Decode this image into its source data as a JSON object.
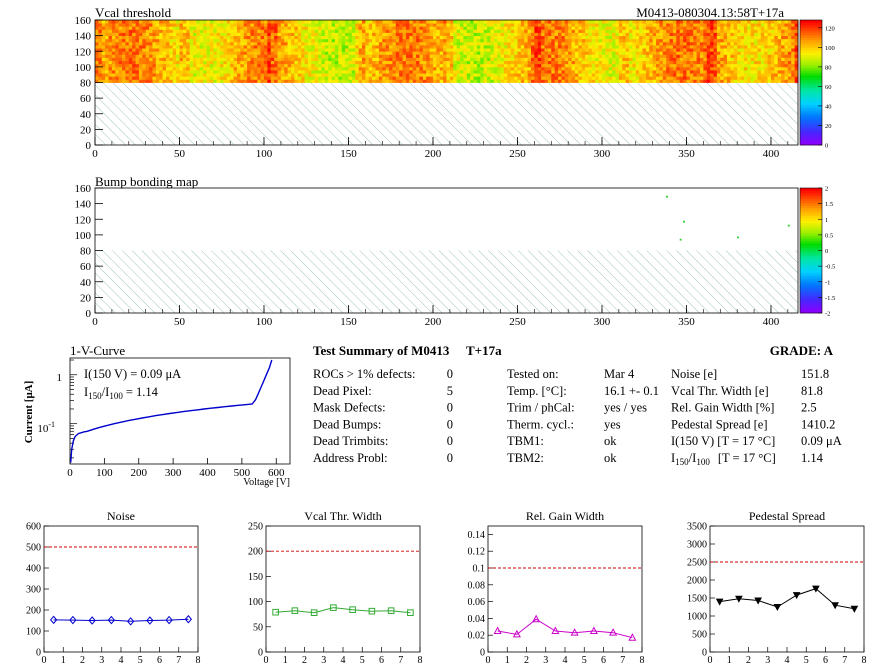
{
  "header": {
    "vcal_title": "Vcal threshold",
    "module_id": "M0413-080304.13:58T+17a",
    "bump_title": "Bump bonding map"
  },
  "maps": {
    "x_ticks": [
      "0",
      "50",
      "100",
      "150",
      "200",
      "250",
      "300",
      "350",
      "400"
    ],
    "y_ticks": [
      "0",
      "20",
      "40",
      "60",
      "80",
      "100",
      "120",
      "140",
      "160"
    ],
    "x_range": [
      0,
      416
    ],
    "y_range": [
      0,
      160
    ],
    "vcal_palette_ticks": [
      "0",
      "20",
      "40",
      "60",
      "80",
      "100",
      "120"
    ],
    "vcal_palette_range": [
      0,
      128
    ],
    "bump_palette_ticks": [
      "-2",
      "-1.5",
      "-1",
      "-0.5",
      "0",
      "0.5",
      "1",
      "1.5",
      "2"
    ],
    "bump_palette_range": [
      -2,
      2
    ],
    "bump_hits": [
      [
        338,
        150
      ],
      [
        348,
        118
      ],
      [
        380,
        98
      ],
      [
        410,
        113
      ],
      [
        346,
        95
      ]
    ]
  },
  "iv": {
    "title": "1-V-Curve",
    "ylabel": "Current [μA]",
    "xlabel": "Voltage [V]",
    "x_ticks": [
      "0",
      "100",
      "200",
      "300",
      "400",
      "500",
      "600"
    ],
    "y_tick_1": "1",
    "y_tick_01": "10",
    "y_tick_01_exp": "-1",
    "i150_text": "I(150 V) = 0.09 μA",
    "ratio_label_I": "I",
    "ratio_sub_150": "150",
    "ratio_slash": "/I",
    "ratio_sub_100": "100",
    "ratio_value": "=  1.14",
    "color": "#0000cc"
  },
  "summary": {
    "title": "Test Summary of M0413",
    "tag": "T+17a",
    "grade": "GRADE:  A",
    "defects": [
      {
        "label": "ROCs > 1% defects:",
        "value": "0"
      },
      {
        "label": "Dead Pixel:",
        "value": "5"
      },
      {
        "label": "Mask Defects:",
        "value": "0"
      },
      {
        "label": "Dead Bumps:",
        "value": "0"
      },
      {
        "label": "Dead Trimbits:",
        "value": "0"
      },
      {
        "label": "Address Probl:",
        "value": "0"
      }
    ],
    "conditions": [
      {
        "label": "Tested on:",
        "value": "Mar 4"
      },
      {
        "label": "Temp. [°C]:",
        "value": "16.1 +- 0.1"
      },
      {
        "label": "Trim / phCal:",
        "value": "yes / yes"
      },
      {
        "label": "Therm. cycl.:",
        "value": "yes"
      },
      {
        "label": "TBM1:",
        "value": "ok"
      },
      {
        "label": "TBM2:",
        "value": "ok"
      }
    ],
    "results": [
      {
        "label": "Noise [e]",
        "value": "151.8"
      },
      {
        "label": "Vcal Thr. Width [e]",
        "value": "81.8"
      },
      {
        "label": "Rel. Gain Width [%]",
        "value": "2.5"
      },
      {
        "label": "Pedestal Spread [e]",
        "value": "1410.2"
      },
      {
        "label": "I(150 V) [T = 17 °C]",
        "value": "0.09 μA"
      }
    ],
    "ratio_row": {
      "label_pre": "I",
      "sub1": "150",
      "mid": "/I",
      "sub2": "100",
      "label_post": "[T = 17 °C]",
      "value": "1.14"
    }
  },
  "chart_data": [
    {
      "type": "line",
      "title": "Noise",
      "color": "#0000cc",
      "marker": "diamond",
      "x": [
        0.5,
        1.5,
        2.5,
        3.5,
        4.5,
        5.5,
        6.5,
        7.5
      ],
      "values": [
        153,
        152,
        150,
        152,
        146,
        150,
        152,
        156
      ],
      "ylim": [
        0,
        600
      ],
      "xlim": [
        0,
        8
      ],
      "limit": 500,
      "y_ticks": [
        "0",
        "100",
        "200",
        "300",
        "400",
        "500",
        "600"
      ],
      "x_ticks": [
        "0",
        "1",
        "2",
        "3",
        "4",
        "5",
        "6",
        "7",
        "8"
      ]
    },
    {
      "type": "line",
      "title": "Vcal Thr. Width",
      "color": "#33aa33",
      "marker": "square",
      "x": [
        0.5,
        1.5,
        2.5,
        3.5,
        4.5,
        5.5,
        6.5,
        7.5
      ],
      "values": [
        79,
        82,
        78,
        88,
        84,
        81,
        82,
        78
      ],
      "ylim": [
        0,
        250
      ],
      "xlim": [
        0,
        8
      ],
      "limit": 200,
      "y_ticks": [
        "0",
        "50",
        "100",
        "150",
        "200",
        "250"
      ],
      "x_ticks": [
        "0",
        "1",
        "2",
        "3",
        "4",
        "5",
        "6",
        "7",
        "8"
      ]
    },
    {
      "type": "line",
      "title": "Rel. Gain Width",
      "color": "#cc00cc",
      "marker": "triangle",
      "x": [
        0.5,
        1.5,
        2.5,
        3.5,
        4.5,
        5.5,
        6.5,
        7.5
      ],
      "values": [
        0.025,
        0.021,
        0.039,
        0.025,
        0.023,
        0.025,
        0.023,
        0.017
      ],
      "ylim": [
        0,
        0.15
      ],
      "xlim": [
        0,
        8
      ],
      "limit": 0.1,
      "y_ticks": [
        "0",
        "0.02",
        "0.04",
        "0.06",
        "0.08",
        "0.1",
        "0.12",
        "0.14"
      ],
      "x_ticks": [
        "0",
        "1",
        "2",
        "3",
        "4",
        "5",
        "6",
        "7",
        "8"
      ]
    },
    {
      "type": "line",
      "title": "Pedestal Spread",
      "color": "#000000",
      "marker": "triangle-down",
      "x": [
        0.5,
        1.5,
        2.5,
        3.5,
        4.5,
        5.5,
        6.5,
        7.5
      ],
      "values": [
        1400,
        1480,
        1430,
        1250,
        1580,
        1760,
        1300,
        1200
      ],
      "ylim": [
        0,
        3500
      ],
      "xlim": [
        0,
        8
      ],
      "limit": 2500,
      "y_ticks": [
        "0",
        "500",
        "1000",
        "1500",
        "2000",
        "2500",
        "3000",
        "3500"
      ],
      "x_ticks": [
        "0",
        "1",
        "2",
        "3",
        "4",
        "5",
        "6",
        "7",
        "8"
      ]
    }
  ]
}
